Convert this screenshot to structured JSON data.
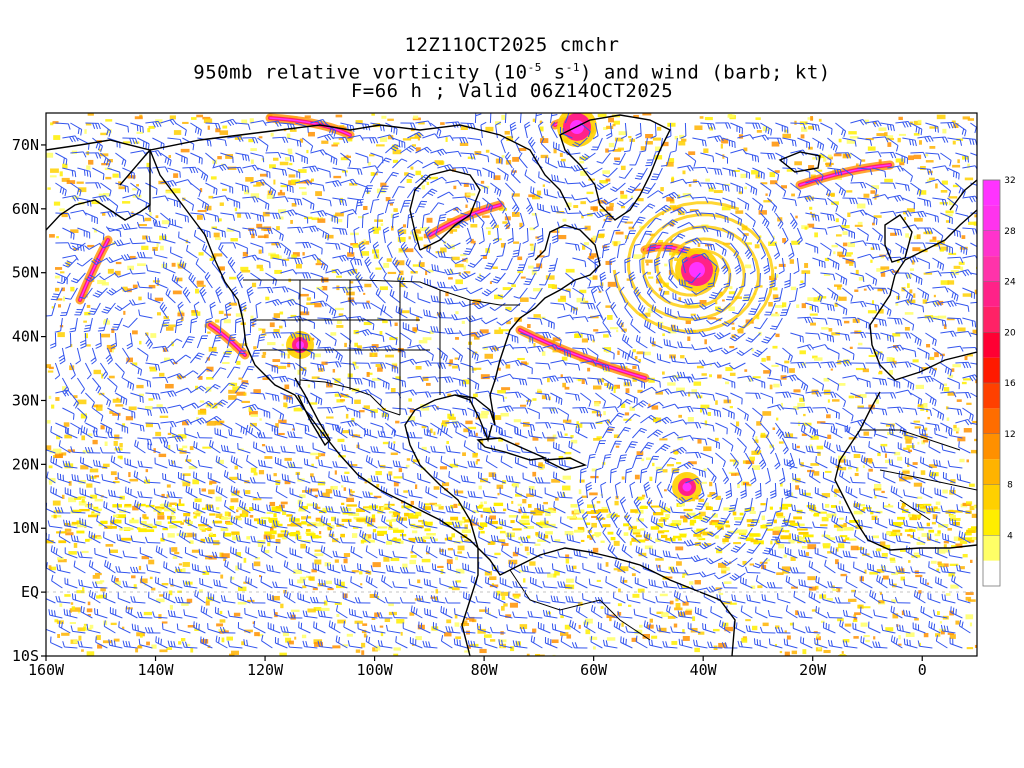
{
  "header": {
    "title_line1": "12Z11OCT2025 cmchr",
    "title_line2_part1": "950mb relative vorticity (10",
    "title_line2_exp1": "-5",
    "title_line2_part2": " s",
    "title_line2_exp2": "-1",
    "title_line2_part3": ") and wind (barb; kt)",
    "title_line3": "F=66 h ; Valid 06Z14OCT2025"
  },
  "map": {
    "projection": "lat-lon",
    "lon_range": [
      -160,
      10
    ],
    "lat_range": [
      -10,
      75
    ],
    "x_tick_labels": [
      "160W",
      "140W",
      "120W",
      "100W",
      "80W",
      "60W",
      "40W",
      "20W",
      "0"
    ],
    "x_tick_lons": [
      -160,
      -140,
      -120,
      -100,
      -80,
      -60,
      -40,
      -20,
      0
    ],
    "y_tick_labels": [
      "10S",
      "EQ",
      "10N",
      "20N",
      "30N",
      "40N",
      "50N",
      "60N",
      "70N"
    ],
    "y_tick_lats": [
      -10,
      0,
      10,
      20,
      30,
      40,
      50,
      60,
      70
    ],
    "wind_barb_color": "#3355ee",
    "coastline_color": "#000000"
  },
  "colorbar": {
    "labels": [
      "4",
      "8",
      "12",
      "16",
      "20",
      "24",
      "28",
      "32"
    ],
    "colors": [
      "#ffffff",
      "#ffff66",
      "#ffee00",
      "#ffd000",
      "#ffb300",
      "#ff9000",
      "#ff6d00",
      "#ff4000",
      "#ff1a00",
      "#ff0033",
      "#ff2266",
      "#ff2288",
      "#ff33aa",
      "#ff33cc",
      "#ff33ee",
      "#ff33ff"
    ]
  }
}
